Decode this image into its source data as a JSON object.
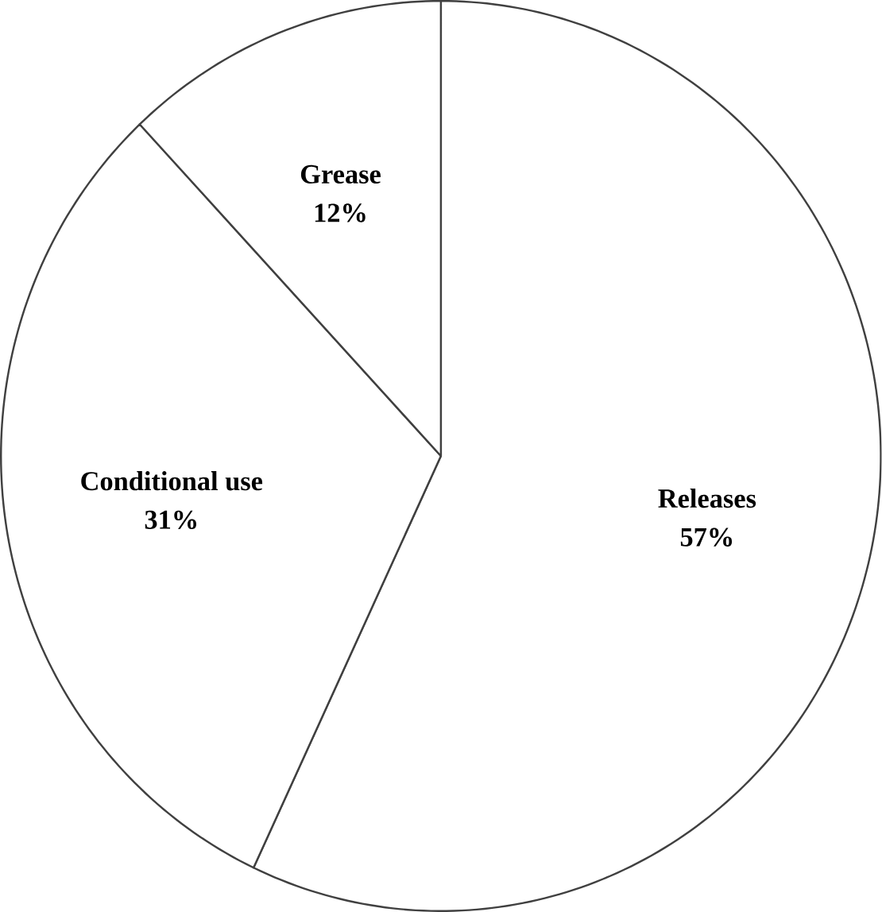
{
  "chart_data": {
    "type": "pie",
    "categories": [
      "Releases",
      "Conditional use",
      "Grease"
    ],
    "values": [
      57,
      31,
      12
    ],
    "value_labels": [
      "57%",
      "31%",
      "12%"
    ],
    "colors": [
      "#ffffff",
      "#ffffff",
      "#ffffff"
    ]
  }
}
